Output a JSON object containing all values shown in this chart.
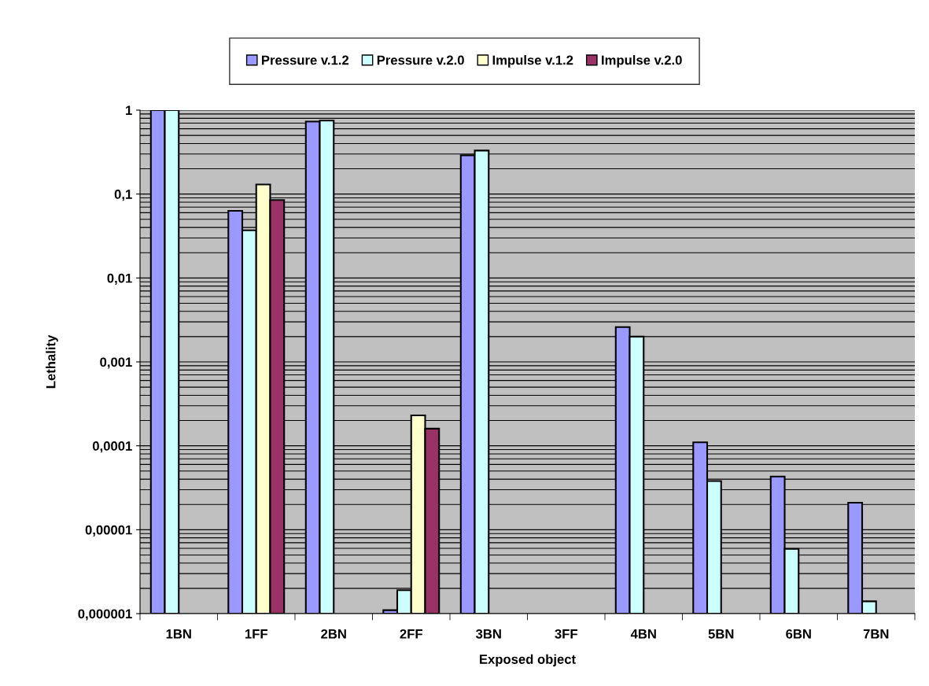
{
  "chart_data": {
    "type": "bar",
    "xlabel": "Exposed object",
    "ylabel": "Lethality",
    "log": "y",
    "grid": "y",
    "legend": "top",
    "categories": [
      "1BN",
      "1FF",
      "2BN",
      "2FF",
      "3BN",
      "3FF",
      "4BN",
      "5BN",
      "6BN",
      "7BN"
    ],
    "series": [
      {
        "name": "Pressure v.1.2",
        "color": "#9999ff",
        "values": [
          1,
          0.063,
          0.73,
          1.1e-06,
          0.29,
          null,
          0.0026,
          0.00011,
          4.3e-05,
          2.1e-05
        ]
      },
      {
        "name": "Pressure v.2.0",
        "color": "#ccffff",
        "values": [
          1,
          0.037,
          0.75,
          1.9e-06,
          0.33,
          null,
          0.002,
          3.8e-05,
          5.9e-06,
          1.4e-06
        ]
      },
      {
        "name": "Impulse v.1.2",
        "color": "#ffffcc",
        "values": [
          null,
          0.13,
          null,
          0.00023,
          null,
          null,
          null,
          null,
          null,
          null
        ]
      },
      {
        "name": "Impulse v.2.0",
        "color": "#993366",
        "values": [
          null,
          0.085,
          null,
          0.00016,
          null,
          null,
          null,
          null,
          null,
          null
        ]
      }
    ],
    "ylim": [
      1e-06,
      1
    ],
    "yticks": [
      {
        "value": 1e-06,
        "label": "0,000001"
      },
      {
        "value": 1e-05,
        "label": "0,00001"
      },
      {
        "value": 0.0001,
        "label": "0,0001"
      },
      {
        "value": 0.001,
        "label": "0,001"
      },
      {
        "value": 0.01,
        "label": "0,01"
      },
      {
        "value": 0.1,
        "label": "0,1"
      },
      {
        "value": 1,
        "label": "1"
      }
    ]
  }
}
